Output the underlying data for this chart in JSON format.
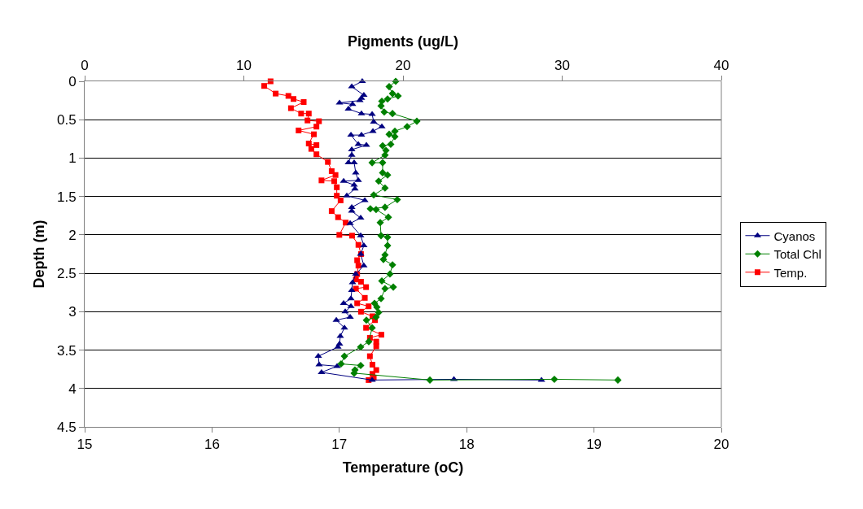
{
  "chart_data": {
    "type": "line",
    "xlabel": "Temperature (oC)",
    "x2label": "Pigments (ug/L)",
    "ylabel": "Depth (m)",
    "xlim": [
      15,
      20
    ],
    "xticks": [
      15,
      16,
      17,
      18,
      19,
      20
    ],
    "x2lim": [
      0,
      40
    ],
    "x2ticks": [
      0,
      10,
      20,
      30,
      40
    ],
    "ylim": [
      4.5,
      0
    ],
    "yticks": [
      0,
      0.5,
      1,
      1.5,
      2,
      2.5,
      3,
      3.5,
      4,
      4.5
    ],
    "grid": "y",
    "legend": "right",
    "series": [
      {
        "name": "Cyanos",
        "color": "#000080",
        "marker": "triangle",
        "axis": "x2",
        "x": [
          17.44,
          16.78,
          17.54,
          17.39,
          17.29,
          16.01,
          16.83,
          16.57,
          17.39,
          18.06,
          18.16,
          18.67,
          18.11,
          17.39,
          16.73,
          17.19,
          17.7,
          16.78,
          16.78,
          16.57,
          16.93,
          17.03,
          17.19,
          16.27,
          16.93,
          16.98,
          16.47,
          17.6,
          16.78,
          16.78,
          17.34,
          16.68,
          17.34,
          17.54,
          17.34,
          17.54,
          17.03,
          16.83,
          16.78,
          16.73,
          16.27,
          16.73,
          16.37,
          16.68,
          15.81,
          16.32,
          16.06,
          16.01,
          15.91,
          14.68,
          14.73,
          15.86,
          14.88,
          18.06,
          23.2,
          28.7
        ],
        "values": [
          0,
          0.07,
          0.18,
          0.22,
          0.25,
          0.28,
          0.3,
          0.36,
          0.42,
          0.43,
          0.53,
          0.59,
          0.65,
          0.7,
          0.7,
          0.82,
          0.83,
          0.89,
          0.96,
          1.06,
          1.06,
          1.19,
          1.29,
          1.3,
          1.35,
          1.4,
          1.49,
          1.55,
          1.64,
          1.69,
          1.78,
          1.85,
          2.01,
          2.14,
          2.25,
          2.4,
          2.51,
          2.62,
          2.72,
          2.83,
          2.89,
          2.93,
          3.0,
          3.07,
          3.11,
          3.21,
          3.32,
          3.42,
          3.46,
          3.58,
          3.69,
          3.71,
          3.79,
          3.89,
          3.88,
          3.89
        ]
      },
      {
        "name": "Total Chl",
        "color": "#008000",
        "marker": "diamond",
        "axis": "x2",
        "x": [
          19.54,
          19.13,
          19.34,
          19.69,
          19.03,
          18.67,
          18.62,
          18.82,
          19.34,
          20.87,
          20.26,
          19.49,
          19.13,
          19.49,
          19.23,
          18.72,
          18.93,
          18.87,
          18.06,
          18.72,
          18.72,
          19.03,
          18.47,
          18.87,
          18.16,
          19.64,
          18.87,
          17.95,
          18.31,
          19.08,
          18.57,
          18.62,
          19.03,
          19.03,
          18.87,
          18.77,
          19.34,
          19.18,
          18.67,
          19.39,
          18.87,
          18.62,
          18.21,
          18.36,
          18.47,
          18.31,
          17.7,
          18.06,
          17.85,
          17.34,
          16.32,
          16.11,
          17.34,
          16.98,
          16.93,
          21.69,
          29.51,
          33.5
        ],
        "values": [
          0,
          0.07,
          0.16,
          0.19,
          0.23,
          0.26,
          0.32,
          0.4,
          0.42,
          0.52,
          0.59,
          0.65,
          0.69,
          0.72,
          0.82,
          0.84,
          0.9,
          0.96,
          1.06,
          1.06,
          1.19,
          1.22,
          1.3,
          1.39,
          1.48,
          1.54,
          1.64,
          1.66,
          1.67,
          1.77,
          1.84,
          2.01,
          2.03,
          2.14,
          2.26,
          2.32,
          2.39,
          2.51,
          2.6,
          2.68,
          2.7,
          2.83,
          2.89,
          2.94,
          3.01,
          3.07,
          3.11,
          3.21,
          3.39,
          3.46,
          3.58,
          3.68,
          3.7,
          3.76,
          3.8,
          3.89,
          3.88,
          3.89
        ]
      },
      {
        "name": "Temp.",
        "color": "#ff0000",
        "marker": "square",
        "x": [
          16.46,
          16.41,
          16.5,
          16.6,
          16.64,
          16.72,
          16.62,
          16.7,
          16.76,
          16.75,
          16.84,
          16.82,
          16.68,
          16.8,
          16.76,
          16.82,
          16.78,
          16.82,
          16.91,
          16.94,
          16.97,
          16.86,
          16.96,
          16.98,
          16.98,
          17.01,
          16.94,
          16.99,
          17.05,
          17.0,
          17.1,
          17.15,
          17.17,
          17.14,
          17.15,
          17.14,
          17.13,
          17.17,
          17.21,
          17.13,
          17.2,
          17.14,
          17.23,
          17.17,
          17.26,
          17.28,
          17.21,
          17.33,
          17.24,
          17.29,
          17.29,
          17.24,
          17.26,
          17.29,
          17.26,
          17.27,
          17.23
        ],
        "values": [
          0,
          0.06,
          0.16,
          0.19,
          0.23,
          0.27,
          0.35,
          0.42,
          0.42,
          0.51,
          0.52,
          0.59,
          0.64,
          0.69,
          0.81,
          0.83,
          0.88,
          0.95,
          1.05,
          1.17,
          1.22,
          1.29,
          1.3,
          1.38,
          1.49,
          1.55,
          1.69,
          1.77,
          1.84,
          2.0,
          2.01,
          2.13,
          2.25,
          2.33,
          2.4,
          2.51,
          2.58,
          2.61,
          2.68,
          2.7,
          2.82,
          2.89,
          2.93,
          3.0,
          3.06,
          3.11,
          3.21,
          3.3,
          3.34,
          3.39,
          3.45,
          3.58,
          3.69,
          3.76,
          3.81,
          3.86,
          3.89
        ]
      }
    ]
  }
}
